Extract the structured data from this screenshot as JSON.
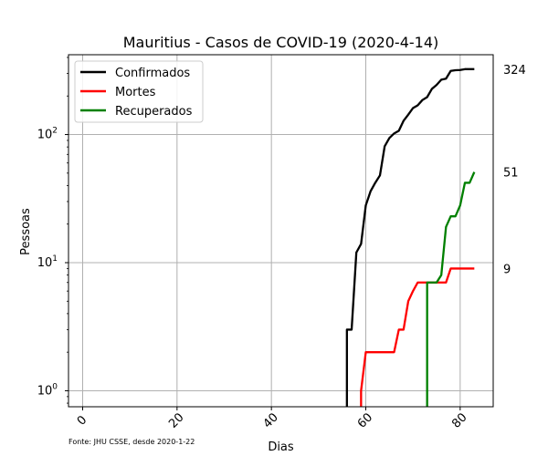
{
  "chart_data": {
    "type": "line",
    "title": "Mauritius - Casos de COVID-19 (2020-4-14)",
    "xlabel": "Dias",
    "ylabel": "Pessoas",
    "source_note": "Fonte: JHU CSSE, desde 2020-1-22",
    "y_scale": "log",
    "grid": true,
    "legend_position": "top-left",
    "xlim": [
      -3,
      87
    ],
    "ylim": [
      0.75,
      420
    ],
    "x_ticks": [
      0,
      20,
      40,
      60,
      80
    ],
    "x_tick_labels": [
      "0",
      "20",
      "40",
      "60",
      "80"
    ],
    "y_ticks": [
      1,
      10,
      100
    ],
    "y_tick_labels": [
      "10^0",
      "10^1",
      "10^2"
    ],
    "end_labels": [
      {
        "value": 324,
        "text": "324"
      },
      {
        "value": 51,
        "text": "51"
      },
      {
        "value": 9,
        "text": "9"
      }
    ],
    "series": [
      {
        "name": "Confirmados",
        "color": "#000000",
        "x": [
          56,
          57,
          58,
          59,
          60,
          61,
          62,
          63,
          64,
          65,
          66,
          67,
          68,
          69,
          70,
          71,
          72,
          73,
          74,
          75,
          76,
          77,
          78,
          79,
          80,
          81,
          82,
          83
        ],
        "values": [
          3,
          3,
          12,
          14,
          28,
          36,
          42,
          48,
          81,
          94,
          102,
          107,
          128,
          143,
          161,
          169,
          186,
          196,
          227,
          244,
          268,
          273,
          314,
          318,
          319,
          324,
          324,
          324
        ]
      },
      {
        "name": "Mortes",
        "color": "#ff0000",
        "x": [
          59,
          60,
          61,
          62,
          63,
          64,
          65,
          66,
          67,
          68,
          69,
          70,
          71,
          72,
          73,
          74,
          75,
          76,
          77,
          78,
          79,
          80,
          81,
          82,
          83
        ],
        "values": [
          1,
          2,
          2,
          2,
          2,
          2,
          2,
          2,
          3,
          3,
          5,
          6,
          7,
          7,
          7,
          7,
          7,
          7,
          7,
          9,
          9,
          9,
          9,
          9,
          9
        ]
      },
      {
        "name": "Recuperados",
        "color": "#008000",
        "x": [
          73,
          74,
          75,
          76,
          77,
          78,
          79,
          80,
          81,
          82,
          83
        ],
        "values": [
          7,
          7,
          7,
          8,
          19,
          23,
          23,
          28,
          42,
          42,
          51
        ]
      }
    ]
  }
}
